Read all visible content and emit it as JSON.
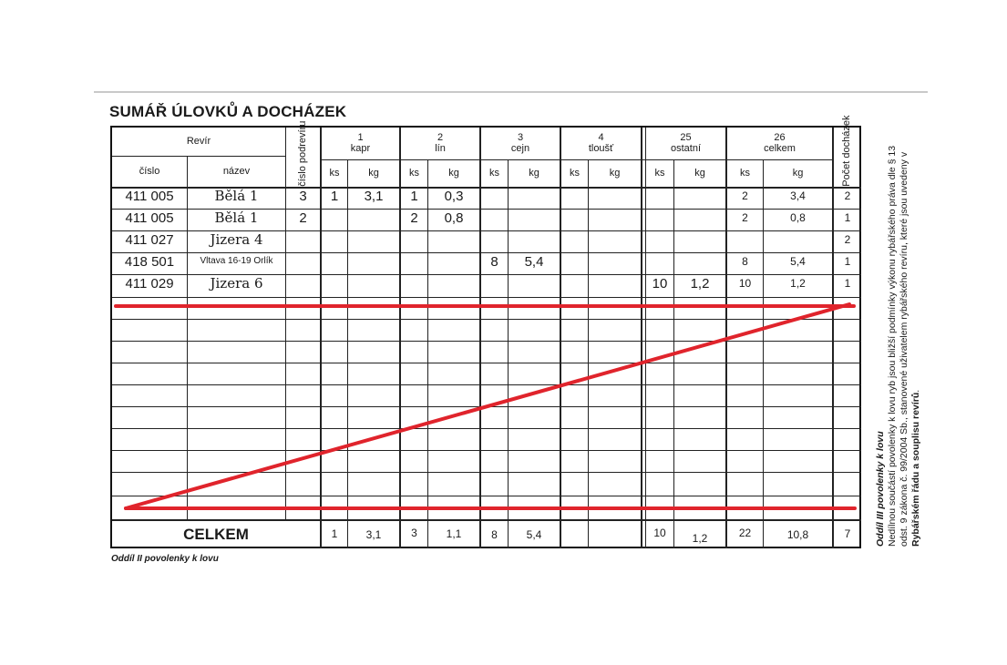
{
  "title": "SUMÁŘ ÚLOVKŮ A DOCHÁZEK",
  "header": {
    "revir": "Revír",
    "cislo": "číslo",
    "nazev": "název",
    "cislo_podreviru": "číslo podrevíru",
    "ks": "ks",
    "kg": "kg",
    "pocet_dochazek": "Počet docházek",
    "species": [
      {
        "code": "1",
        "name": "kapr"
      },
      {
        "code": "2",
        "name": "lín"
      },
      {
        "code": "3",
        "name": "cejn"
      },
      {
        "code": "4",
        "name": "tloušť"
      },
      {
        "code": "25",
        "name": "ostatní"
      },
      {
        "code": "26",
        "name": "celkem"
      }
    ]
  },
  "rows": [
    {
      "cislo": "411 005",
      "nazev": "Bělá 1",
      "pod": "3",
      "kapr_ks": "1",
      "kapr_kg": "3,1",
      "lin_ks": "1",
      "lin_kg": "0,3",
      "cejn_ks": "",
      "cejn_kg": "",
      "tloust_ks": "",
      "tloust_kg": "",
      "ost_ks": "",
      "ost_kg": "",
      "cel_ks": "2",
      "cel_kg": "3,4",
      "doch": "2"
    },
    {
      "cislo": "411 005",
      "nazev": "Bělá 1",
      "pod": "2",
      "kapr_ks": "",
      "kapr_kg": "",
      "lin_ks": "2",
      "lin_kg": "0,8",
      "cejn_ks": "",
      "cejn_kg": "",
      "tloust_ks": "",
      "tloust_kg": "",
      "ost_ks": "",
      "ost_kg": "",
      "cel_ks": "2",
      "cel_kg": "0,8",
      "doch": "1"
    },
    {
      "cislo": "411 027",
      "nazev": "Jizera 4",
      "pod": "",
      "kapr_ks": "",
      "kapr_kg": "",
      "lin_ks": "",
      "lin_kg": "",
      "cejn_ks": "",
      "cejn_kg": "",
      "tloust_ks": "",
      "tloust_kg": "",
      "ost_ks": "",
      "ost_kg": "",
      "cel_ks": "",
      "cel_kg": "",
      "doch": "2"
    },
    {
      "cislo": "418 501",
      "nazev": "Vltava 16-19 Orlík",
      "pod": "",
      "kapr_ks": "",
      "kapr_kg": "",
      "lin_ks": "",
      "lin_kg": "",
      "cejn_ks": "8",
      "cejn_kg": "5,4",
      "tloust_ks": "",
      "tloust_kg": "",
      "ost_ks": "",
      "ost_kg": "",
      "cel_ks": "8",
      "cel_kg": "5,4",
      "doch": "1"
    },
    {
      "cislo": "411 029",
      "nazev": "Jizera 6",
      "pod": "",
      "kapr_ks": "",
      "kapr_kg": "",
      "lin_ks": "",
      "lin_kg": "",
      "cejn_ks": "",
      "cejn_kg": "",
      "tloust_ks": "",
      "tloust_kg": "",
      "ost_ks": "10",
      "ost_kg": "1,2",
      "cel_ks": "10",
      "cel_kg": "1,2",
      "doch": "1"
    }
  ],
  "totals": {
    "label": "CELKEM",
    "kapr_ks": "1",
    "kapr_kg": "3,1",
    "lin_ks": "3",
    "lin_kg": "1,1",
    "cejn_ks": "8",
    "cejn_kg": "5,4",
    "tloust_ks": "",
    "tloust_kg": "",
    "ost_ks": "10",
    "ost_kg": "1,2",
    "cel_ks": "22",
    "cel_kg": "10,8",
    "doch": "7"
  },
  "footer": "Oddíl II povolenky k lovu",
  "side_note": {
    "title": "Oddíl III povolenky k lovu",
    "text_1": "Nedílnou součástí povolenky k lovu ryb jsou bližší podmínky výkonu rybářského práva dle § 13 odst. 9 zákona č. 99/2004 Sb., stanovené uživatelem rybářského revíru, které jsou uvedeny v ",
    "text_bold": "Rybářském řádu a souplisu revírů",
    "text_2": "."
  },
  "colors": {
    "ink": "#1a1a1a",
    "cancel_stroke": "#e0242c"
  }
}
